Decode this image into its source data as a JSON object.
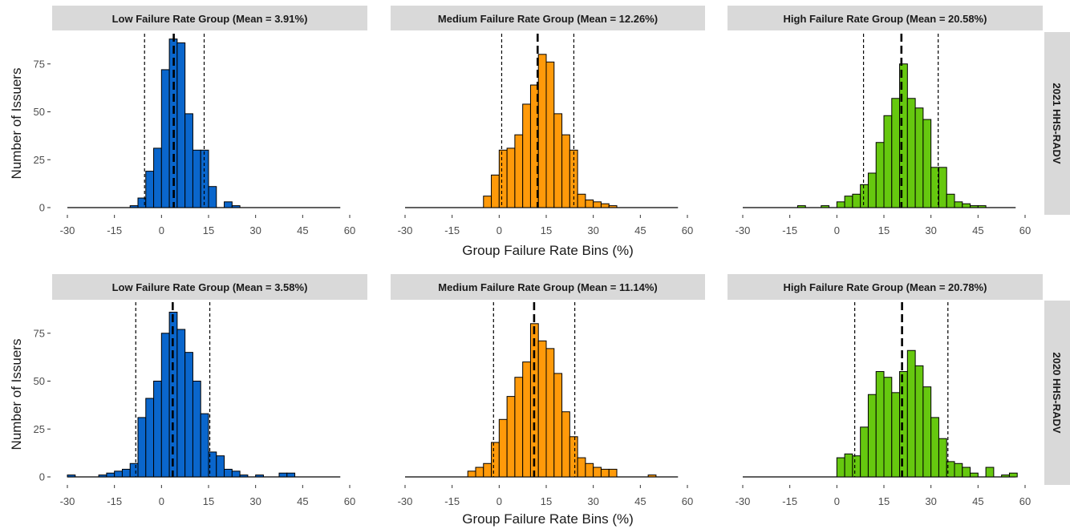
{
  "figure": {
    "ylabel": "Number of Issuers",
    "xlabel": "Group Failure Rate Bins (%)",
    "row_labels": [
      "2021 HHS-RADV",
      "2020 HHS-RADV"
    ],
    "strip_fill": "#d9d9d9",
    "colors": {
      "low": "#0a66cc",
      "medium": "#ff9a0a",
      "high": "#66c80f"
    }
  },
  "chart_data": [
    {
      "type": "bar",
      "title": "Low Failure Rate Group (Mean = 3.91%)",
      "row": "2021 HHS-RADV",
      "group": "low",
      "xlim": [
        -30,
        60
      ],
      "ylim": [
        0,
        88
      ],
      "xticks": [
        -30,
        -15,
        0,
        15,
        30,
        45,
        60
      ],
      "yticks": [
        0,
        25,
        50,
        75
      ],
      "bin_width": 2.5,
      "bins": [
        [
          -10,
          1
        ],
        [
          -7.5,
          5
        ],
        [
          -5,
          19
        ],
        [
          -2.5,
          31
        ],
        [
          0,
          72
        ],
        [
          2.5,
          88
        ],
        [
          5,
          86
        ],
        [
          7.5,
          49
        ],
        [
          10,
          30
        ],
        [
          12.5,
          30
        ],
        [
          15,
          11
        ],
        [
          20,
          3
        ],
        [
          22.5,
          1
        ]
      ],
      "mean": 3.91,
      "bounds": [
        -5.4,
        13.6
      ]
    },
    {
      "type": "bar",
      "title": "Medium  Failure Rate Group (Mean = 12.26%)",
      "row": "2021 HHS-RADV",
      "group": "medium",
      "xlim": [
        -30,
        60
      ],
      "ylim": [
        0,
        88
      ],
      "xticks": [
        -30,
        -15,
        0,
        15,
        30,
        45,
        60
      ],
      "yticks": [
        0,
        25,
        50,
        75
      ],
      "bin_width": 2.5,
      "bins": [
        [
          -5,
          6
        ],
        [
          -2.5,
          17
        ],
        [
          0,
          30
        ],
        [
          2.5,
          31
        ],
        [
          5,
          38
        ],
        [
          7.5,
          54
        ],
        [
          10,
          64
        ],
        [
          12.5,
          80
        ],
        [
          15,
          76
        ],
        [
          17.5,
          49
        ],
        [
          20,
          38
        ],
        [
          22.5,
          30
        ],
        [
          25,
          7
        ],
        [
          27.5,
          4
        ],
        [
          30,
          3
        ],
        [
          32.5,
          2
        ],
        [
          35,
          1
        ]
      ],
      "mean": 12.26,
      "bounds": [
        0.8,
        23.8
      ]
    },
    {
      "type": "bar",
      "title": "High  Failure Rate Group (Mean = 20.58%)",
      "row": "2021 HHS-RADV",
      "group": "high",
      "xlim": [
        -30,
        60
      ],
      "ylim": [
        0,
        88
      ],
      "xticks": [
        -30,
        -15,
        0,
        15,
        30,
        45,
        60
      ],
      "yticks": [
        0,
        25,
        50,
        75
      ],
      "bin_width": 2.5,
      "bins": [
        [
          -12.5,
          1
        ],
        [
          -5,
          1
        ],
        [
          0,
          3
        ],
        [
          2.5,
          6
        ],
        [
          5,
          7
        ],
        [
          7.5,
          12
        ],
        [
          10,
          18
        ],
        [
          12.5,
          34
        ],
        [
          15,
          48
        ],
        [
          17.5,
          57
        ],
        [
          20,
          75
        ],
        [
          22.5,
          57
        ],
        [
          25,
          52
        ],
        [
          27.5,
          46
        ],
        [
          30,
          21
        ],
        [
          32.5,
          21
        ],
        [
          35,
          7
        ],
        [
          37.5,
          3
        ],
        [
          40,
          2
        ],
        [
          42.5,
          1
        ],
        [
          45,
          1
        ]
      ],
      "mean": 20.58,
      "bounds": [
        8.5,
        32.3
      ]
    },
    {
      "type": "bar",
      "title": "Low Failure Rate Group (Mean = 3.58%)",
      "row": "2020 HHS-RADV",
      "group": "low",
      "xlim": [
        -30,
        60
      ],
      "ylim": [
        0,
        88
      ],
      "xticks": [
        -30,
        -15,
        0,
        15,
        30,
        45,
        60
      ],
      "yticks": [
        0,
        25,
        50,
        75
      ],
      "bin_width": 2.5,
      "bins": [
        [
          -30,
          1
        ],
        [
          -20,
          1
        ],
        [
          -17.5,
          2
        ],
        [
          -15,
          3
        ],
        [
          -12.5,
          4
        ],
        [
          -10,
          7
        ],
        [
          -7.5,
          31
        ],
        [
          -5,
          41
        ],
        [
          -2.5,
          50
        ],
        [
          0,
          75
        ],
        [
          2.5,
          86
        ],
        [
          5,
          77
        ],
        [
          7.5,
          65
        ],
        [
          10,
          50
        ],
        [
          12.5,
          33
        ],
        [
          15,
          13
        ],
        [
          17.5,
          11
        ],
        [
          20,
          4
        ],
        [
          22.5,
          3
        ],
        [
          25,
          1
        ],
        [
          30,
          1
        ],
        [
          37.5,
          2
        ],
        [
          40,
          2
        ]
      ],
      "mean": 3.58,
      "bounds": [
        -8.2,
        15.4
      ]
    },
    {
      "type": "bar",
      "title": "Medium Failure Rate Group (Mean = 11.14%)",
      "row": "2020 HHS-RADV",
      "group": "medium",
      "xlim": [
        -30,
        60
      ],
      "ylim": [
        0,
        88
      ],
      "xticks": [
        -30,
        -15,
        0,
        15,
        30,
        45,
        60
      ],
      "yticks": [
        0,
        25,
        50,
        75
      ],
      "bin_width": 2.5,
      "bins": [
        [
          -10,
          3
        ],
        [
          -7.5,
          5
        ],
        [
          -5,
          7
        ],
        [
          -2.5,
          18
        ],
        [
          0,
          30
        ],
        [
          2.5,
          42
        ],
        [
          5,
          52
        ],
        [
          7.5,
          60
        ],
        [
          10,
          80
        ],
        [
          12.5,
          71
        ],
        [
          15,
          67
        ],
        [
          17.5,
          54
        ],
        [
          20,
          34
        ],
        [
          22.5,
          21
        ],
        [
          25,
          10
        ],
        [
          27.5,
          7
        ],
        [
          30,
          5
        ],
        [
          32.5,
          4
        ],
        [
          35,
          4
        ],
        [
          47.5,
          1
        ]
      ],
      "mean": 11.14,
      "bounds": [
        -1.8,
        24.1
      ]
    },
    {
      "type": "bar",
      "title": "High Failure Rate Group (Mean = 20.78%)",
      "row": "2020 HHS-RADV",
      "group": "high",
      "xlim": [
        -30,
        60
      ],
      "ylim": [
        0,
        88
      ],
      "xticks": [
        -30,
        -15,
        0,
        15,
        30,
        45,
        60
      ],
      "yticks": [
        0,
        25,
        50,
        75
      ],
      "bin_width": 2.5,
      "bins": [
        [
          0,
          10
        ],
        [
          2.5,
          12
        ],
        [
          5,
          11
        ],
        [
          7.5,
          26
        ],
        [
          10,
          43
        ],
        [
          12.5,
          55
        ],
        [
          15,
          52
        ],
        [
          17.5,
          44
        ],
        [
          20,
          55
        ],
        [
          22.5,
          66
        ],
        [
          25,
          58
        ],
        [
          27.5,
          47
        ],
        [
          30,
          31
        ],
        [
          32.5,
          20
        ],
        [
          35,
          8
        ],
        [
          37.5,
          7
        ],
        [
          40,
          5
        ],
        [
          42.5,
          2
        ],
        [
          47.5,
          5
        ],
        [
          52.5,
          1
        ],
        [
          55,
          2
        ]
      ],
      "mean": 20.78,
      "bounds": [
        5.7,
        35.4
      ]
    }
  ]
}
